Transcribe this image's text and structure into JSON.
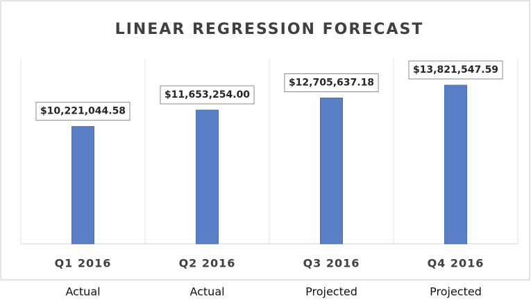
{
  "chart_data": {
    "type": "bar",
    "title": "LINEAR REGRESSION FORECAST",
    "categories": [
      "Q1 2016",
      "Q2 2016",
      "Q3 2016",
      "Q4 2016"
    ],
    "category_groups": [
      "Actual",
      "Actual",
      "Projected",
      "Projected"
    ],
    "values": [
      10221044.58,
      11653254.0,
      12705637.18,
      13821547.59
    ],
    "value_labels": [
      "$10,221,044.58",
      "$11,653,254.00",
      "$12,705,637.18",
      "$13,821,547.59"
    ],
    "color": "#5b7fc7"
  }
}
